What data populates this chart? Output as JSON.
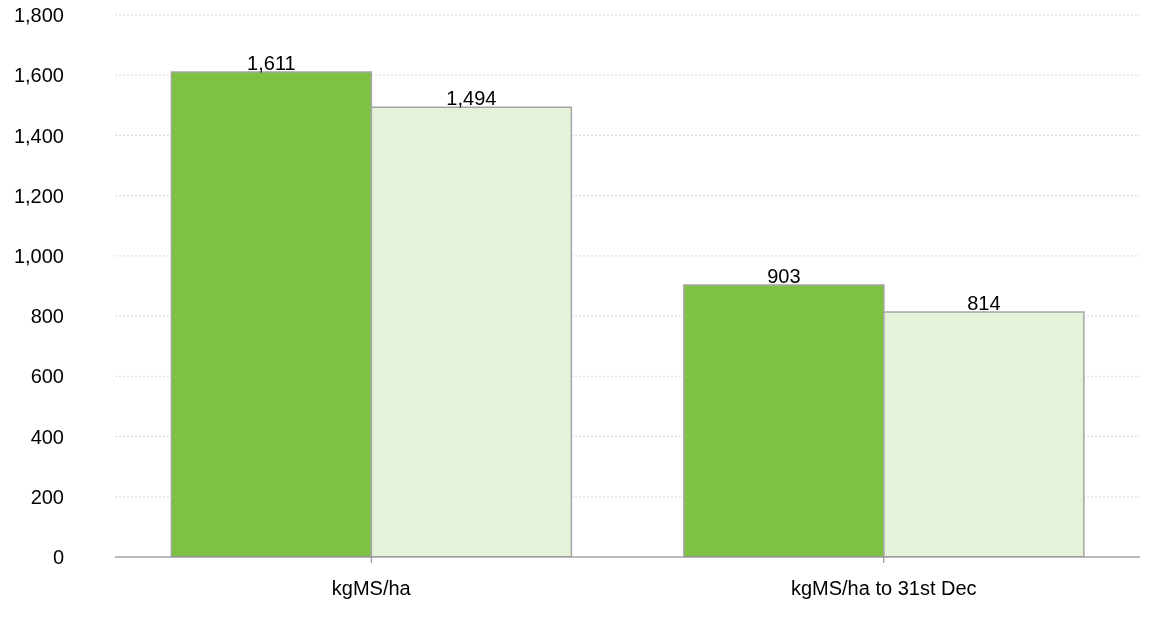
{
  "chart_data": {
    "type": "bar",
    "categories": [
      "kgMS/ha",
      "kgMS/ha to 31st Dec"
    ],
    "series": [
      {
        "color": "#7dc242",
        "values": [
          1611,
          903
        ],
        "value_labels": [
          "1,611",
          "903"
        ]
      },
      {
        "color": "#e5f2d9",
        "values": [
          1494,
          814
        ],
        "value_labels": [
          "1,494",
          "814"
        ]
      }
    ],
    "ylim": [
      0,
      1800
    ],
    "yticks": [
      {
        "value": 0,
        "label": "0"
      },
      {
        "value": 200,
        "label": "200"
      },
      {
        "value": 400,
        "label": "400"
      },
      {
        "value": 600,
        "label": "600"
      },
      {
        "value": 800,
        "label": "800"
      },
      {
        "value": 1000,
        "label": "1,000"
      },
      {
        "value": 1200,
        "label": "1,200"
      },
      {
        "value": 1400,
        "label": "1,400"
      },
      {
        "value": 1600,
        "label": "1,600"
      },
      {
        "value": 1800,
        "label": "1,800"
      }
    ],
    "grid": "y"
  }
}
